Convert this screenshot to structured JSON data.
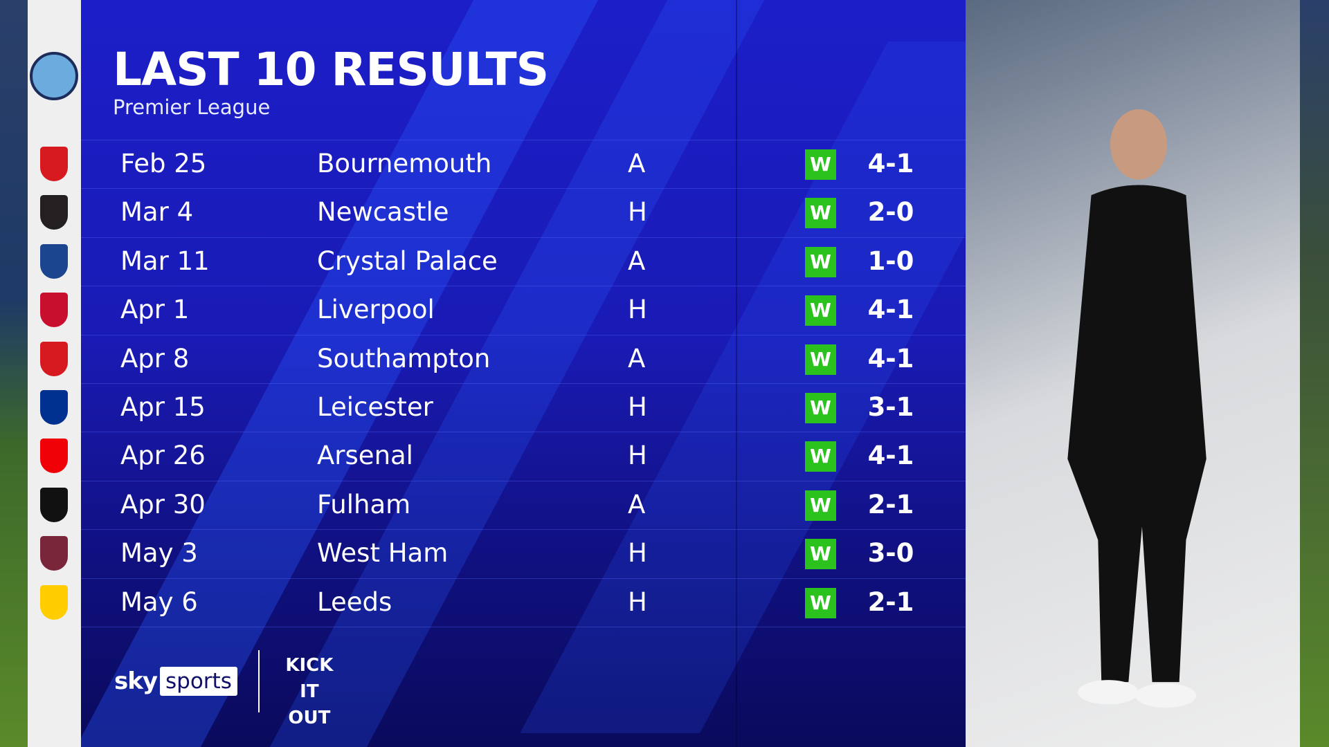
{
  "header": {
    "title": "LAST 10 RESULTS",
    "subtitle": "Premier League"
  },
  "team_crest": "manchester-city-crest",
  "columns": [
    "date",
    "opponent",
    "venue",
    "result",
    "score"
  ],
  "results": [
    {
      "date": "Feb 25",
      "opponent": "Bournemouth",
      "venue": "A",
      "result": "W",
      "score": "4-1",
      "crest": "bournemouth-crest",
      "crest_color": "#d71920"
    },
    {
      "date": "Mar 4",
      "opponent": "Newcastle",
      "venue": "H",
      "result": "W",
      "score": "2-0",
      "crest": "newcastle-crest",
      "crest_color": "#241f20"
    },
    {
      "date": "Mar 11",
      "opponent": "Crystal Palace",
      "venue": "A",
      "result": "W",
      "score": "1-0",
      "crest": "crystal-palace-crest",
      "crest_color": "#1b458f"
    },
    {
      "date": "Apr 1",
      "opponent": "Liverpool",
      "venue": "H",
      "result": "W",
      "score": "4-1",
      "crest": "liverpool-crest",
      "crest_color": "#c8102e"
    },
    {
      "date": "Apr 8",
      "opponent": "Southampton",
      "venue": "A",
      "result": "W",
      "score": "4-1",
      "crest": "southampton-crest",
      "crest_color": "#d71920"
    },
    {
      "date": "Apr 15",
      "opponent": "Leicester",
      "venue": "H",
      "result": "W",
      "score": "3-1",
      "crest": "leicester-crest",
      "crest_color": "#003090"
    },
    {
      "date": "Apr 26",
      "opponent": "Arsenal",
      "venue": "H",
      "result": "W",
      "score": "4-1",
      "crest": "arsenal-crest",
      "crest_color": "#ef0107"
    },
    {
      "date": "Apr 30",
      "opponent": "Fulham",
      "venue": "A",
      "result": "W",
      "score": "2-1",
      "crest": "fulham-crest",
      "crest_color": "#111111"
    },
    {
      "date": "May 3",
      "opponent": "West Ham",
      "venue": "H",
      "result": "W",
      "score": "3-0",
      "crest": "west-ham-crest",
      "crest_color": "#7a263a"
    },
    {
      "date": "May 6",
      "opponent": "Leeds",
      "venue": "H",
      "result": "W",
      "score": "2-1",
      "crest": "leeds-crest",
      "crest_color": "#ffcd00"
    }
  ],
  "colors": {
    "panel": "#1a1bb5",
    "win": "#2bc21e"
  },
  "footer": {
    "sky": "sky",
    "sports": "sports",
    "partner_logo": "KICK IT OUT"
  }
}
